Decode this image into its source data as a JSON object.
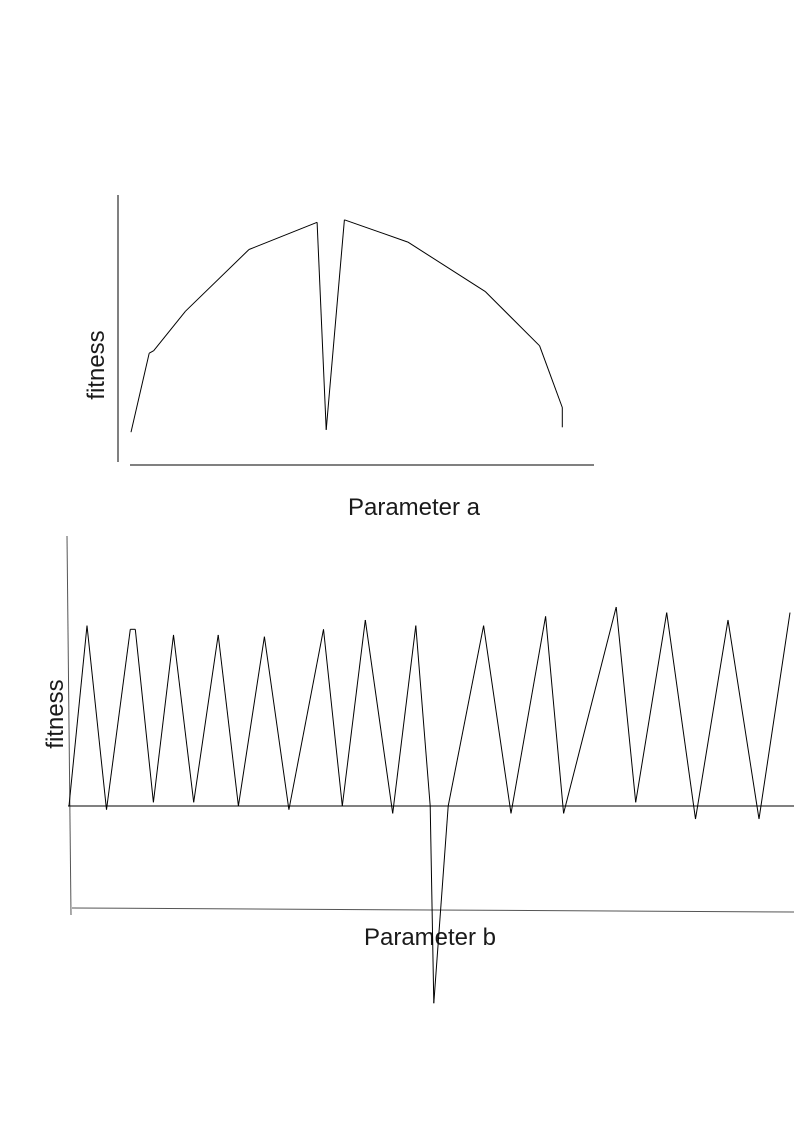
{
  "chart_data": [
    {
      "type": "line",
      "xlabel": "Parameter a",
      "ylabel": "fitness",
      "title": "",
      "xlim": [
        0,
        100
      ],
      "ylim": [
        0,
        100
      ],
      "grid": false,
      "axis_tick_labels": false,
      "series": [
        {
          "values": [
            {
              "x": 0,
              "y": 8
            },
            {
              "x": 4,
              "y": 40
            },
            {
              "x": 5,
              "y": 41
            },
            {
              "x": 12,
              "y": 57
            },
            {
              "x": 26,
              "y": 82
            },
            {
              "x": 41,
              "y": 93
            },
            {
              "x": 43,
              "y": 9
            },
            {
              "x": 47,
              "y": 94
            },
            {
              "x": 61,
              "y": 85
            },
            {
              "x": 78,
              "y": 65
            },
            {
              "x": 90,
              "y": 43
            },
            {
              "x": 95,
              "y": 18
            },
            {
              "x": 95,
              "y": 10
            }
          ]
        }
      ]
    },
    {
      "type": "line",
      "xlabel": "Parameter b",
      "ylabel": "fitness",
      "title": "",
      "xlim": [
        0,
        100
      ],
      "ylim": [
        -100,
        100
      ],
      "grid": false,
      "axis_tick_labels": false,
      "zero_line": true,
      "series": [
        {
          "values": [
            {
              "x": 0,
              "y": 0
            },
            {
              "x": 2.5,
              "y": 97
            },
            {
              "x": 5.2,
              "y": -2
            },
            {
              "x": 8.5,
              "y": 95
            },
            {
              "x": 9.2,
              "y": 95
            },
            {
              "x": 11.7,
              "y": 2
            },
            {
              "x": 14.5,
              "y": 92
            },
            {
              "x": 17.3,
              "y": 2
            },
            {
              "x": 20.7,
              "y": 92
            },
            {
              "x": 23.5,
              "y": 0
            },
            {
              "x": 27.1,
              "y": 91
            },
            {
              "x": 30.5,
              "y": -2
            },
            {
              "x": 35.3,
              "y": 95
            },
            {
              "x": 37.9,
              "y": 0
            },
            {
              "x": 41.1,
              "y": 100
            },
            {
              "x": 44.9,
              "y": -4
            },
            {
              "x": 48.1,
              "y": 97
            },
            {
              "x": 50.1,
              "y": 0
            },
            {
              "x": 50.6,
              "y": -106
            },
            {
              "x": 52.6,
              "y": 0
            },
            {
              "x": 57.5,
              "y": 97
            },
            {
              "x": 61.3,
              "y": -4
            },
            {
              "x": 66.1,
              "y": 102
            },
            {
              "x": 68.6,
              "y": -4
            },
            {
              "x": 75.9,
              "y": 107
            },
            {
              "x": 78.6,
              "y": 2
            },
            {
              "x": 82.9,
              "y": 104
            },
            {
              "x": 86.9,
              "y": -7
            },
            {
              "x": 91.4,
              "y": 100
            },
            {
              "x": 95.7,
              "y": -7
            },
            {
              "x": 100,
              "y": 104
            }
          ]
        }
      ]
    }
  ]
}
